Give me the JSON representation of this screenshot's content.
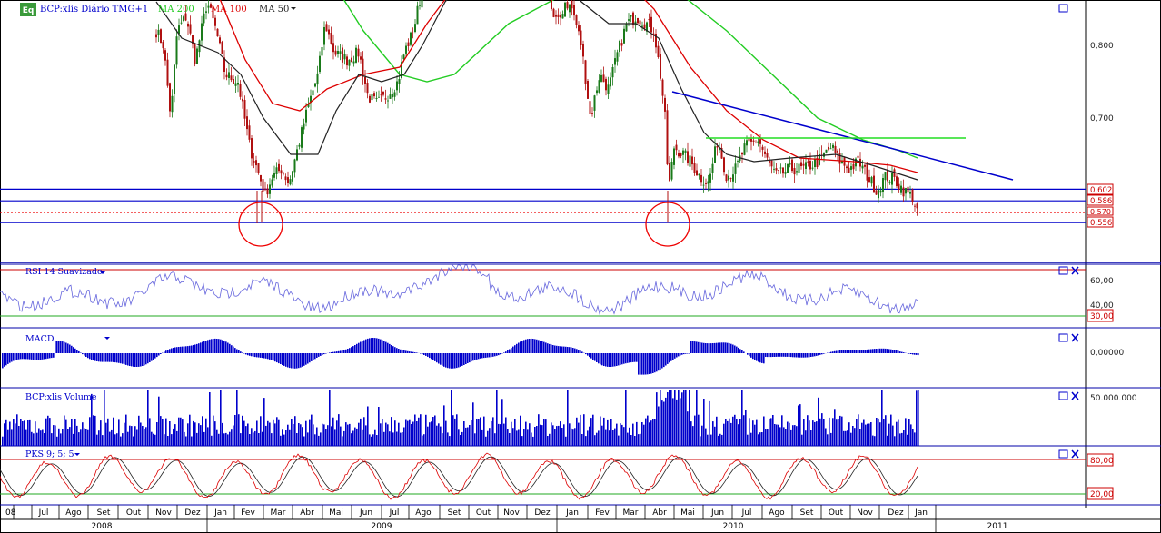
{
  "header": {
    "logo_text": "Eq",
    "symbol_label": "BCP:xlis Diário TMG+1",
    "ma_labels": [
      {
        "text": "MA 200",
        "color": "#22cc22"
      },
      {
        "text": "MA 100",
        "color": "#dd0000"
      },
      {
        "text": "MA 50",
        "color": "#222222"
      }
    ]
  },
  "panels": {
    "price": {
      "axis_labels": [
        "0,800",
        "0,700"
      ],
      "level_badges": [
        "0,602",
        "0,586",
        "0,570",
        "0,556"
      ]
    },
    "rsi": {
      "title": "RSI 14 Suavizado",
      "axis_labels": [
        "60,00",
        "40,00"
      ],
      "badge": "30,00"
    },
    "macd": {
      "title": "MACD",
      "axis_label": "0,00000"
    },
    "volume": {
      "title": "BCP:xlis Volume",
      "axis_label": "50.000.000"
    },
    "pks": {
      "title": "PKS 9; 5; 5",
      "badges": [
        "80,00",
        "20,00"
      ]
    }
  },
  "time_axis": {
    "months": [
      "08",
      "Jul",
      "Ago",
      "Set",
      "Out",
      "Nov",
      "Dez",
      "Jan",
      "Fev",
      "Mar",
      "Abr",
      "Mai",
      "Jun",
      "Jul",
      "Ago",
      "Set",
      "Out",
      "Nov",
      "Dez",
      "Jan",
      "Fev",
      "Mar",
      "Abr",
      "Mai",
      "Jun",
      "Jul",
      "Ago",
      "Set",
      "Out",
      "Nov",
      "Dez",
      "Jan"
    ],
    "years": [
      "2008",
      "2009",
      "2010",
      "2011"
    ]
  },
  "colors": {
    "ma200": "#22cc22",
    "ma100": "#dd0000",
    "ma50": "#222222",
    "up": "#1a7a1a",
    "down": "#b01010",
    "indicator": "#0000cc",
    "rsi_line": "#6666dd",
    "pks_fast": "#dd0000",
    "pks_slow": "#222222",
    "badge": "#cc0000"
  },
  "chart_data": {
    "type": "line",
    "price": {
      "y_ticks": [
        0.8,
        0.7
      ],
      "support_levels": [
        0.602,
        0.586,
        0.556
      ],
      "dotted_level": 0.57,
      "close_series": [
        {
          "date": "2008-06",
          "value": 0.82
        },
        {
          "date": "2008-07",
          "value": 0.83
        },
        {
          "date": "2008-08",
          "value": 0.8
        },
        {
          "date": "2008-09",
          "value": 0.74
        },
        {
          "date": "2008-10",
          "value": 0.78
        },
        {
          "date": "2008-11",
          "value": 0.81
        },
        {
          "date": "2008-12",
          "value": 0.82
        },
        {
          "date": "2009-01",
          "value": 0.8
        },
        {
          "date": "2009-02",
          "value": 0.66
        },
        {
          "date": "2009-03",
          "value": 0.6
        },
        {
          "date": "2009-04",
          "value": 0.67
        },
        {
          "date": "2009-05",
          "value": 0.79
        },
        {
          "date": "2009-06",
          "value": 0.76
        },
        {
          "date": "2009-07",
          "value": 0.71
        },
        {
          "date": "2009-08",
          "value": 0.8
        },
        {
          "date": "2009-09",
          "value": 0.9
        },
        {
          "date": "2009-10",
          "value": 0.92
        },
        {
          "date": "2009-11",
          "value": 0.89
        },
        {
          "date": "2009-12",
          "value": 0.84
        },
        {
          "date": "2010-01",
          "value": 0.85
        },
        {
          "date": "2010-02",
          "value": 0.76
        },
        {
          "date": "2010-03",
          "value": 0.78
        },
        {
          "date": "2010-04",
          "value": 0.82
        },
        {
          "date": "2010-05",
          "value": 0.63
        },
        {
          "date": "2010-06",
          "value": 0.63
        },
        {
          "date": "2010-07",
          "value": 0.65
        },
        {
          "date": "2010-08",
          "value": 0.66
        },
        {
          "date": "2010-09",
          "value": 0.63
        },
        {
          "date": "2010-10",
          "value": 0.65
        },
        {
          "date": "2010-11",
          "value": 0.62
        },
        {
          "date": "2010-12",
          "value": 0.6
        }
      ]
    }
  }
}
